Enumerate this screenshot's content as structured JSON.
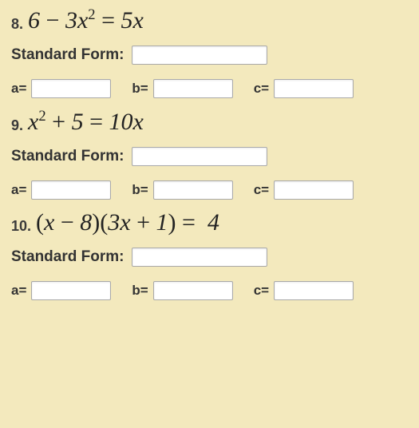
{
  "background_color": "#f3e9bd",
  "input_border": "#a9a9a9",
  "input_bg": "#ffffff",
  "text_color": "#333333",
  "labels": {
    "standard_form": "Standard Form:",
    "a": "a=",
    "b": "b=",
    "c": "c="
  },
  "problems": [
    {
      "number": "8.",
      "equation_html": "6 <span class='op'>−</span> 3x<sup>2</sup> <span class='op'>=</span> 5x",
      "standard_form_value": "",
      "a": "",
      "b": "",
      "c": ""
    },
    {
      "number": "9.",
      "equation_html": "x<sup>2</sup> <span class='op'>+</span> 5 <span class='op'>=</span> 10x",
      "standard_form_value": "",
      "a": "",
      "b": "",
      "c": ""
    },
    {
      "number": "10.",
      "equation_html": "<span class='op'>(</span>x <span class='op'>−</span> 8<span class='op'>)(</span>3x <span class='op'>+</span> 1<span class='op'>)</span> <span class='op'>=</span>&nbsp; 4",
      "standard_form_value": "",
      "a": "",
      "b": "",
      "c": ""
    }
  ]
}
